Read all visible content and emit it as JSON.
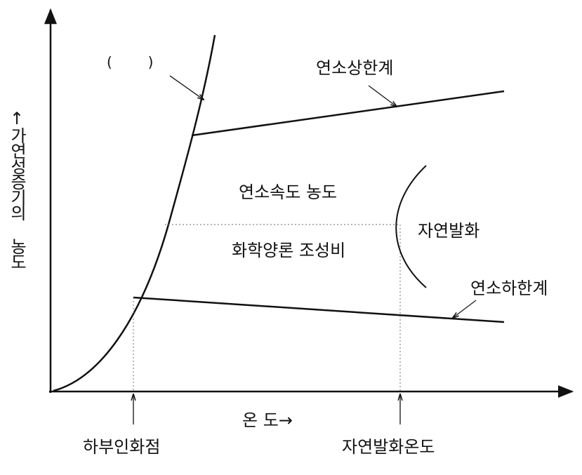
{
  "diagram": {
    "curve_label": "(        )",
    "upper_limit": "연소상한계",
    "lower_limit": "연소하한계",
    "rate_concentration": "연소속도 농도",
    "stoichiometric": "화학양론 조성비",
    "autoignition": "자연발화",
    "lower_flash_point": "하부인화점",
    "autoignition_temperature": "자연발화온도",
    "x_label": "온 도→",
    "y_label": "↑가연성증기의 농도"
  }
}
